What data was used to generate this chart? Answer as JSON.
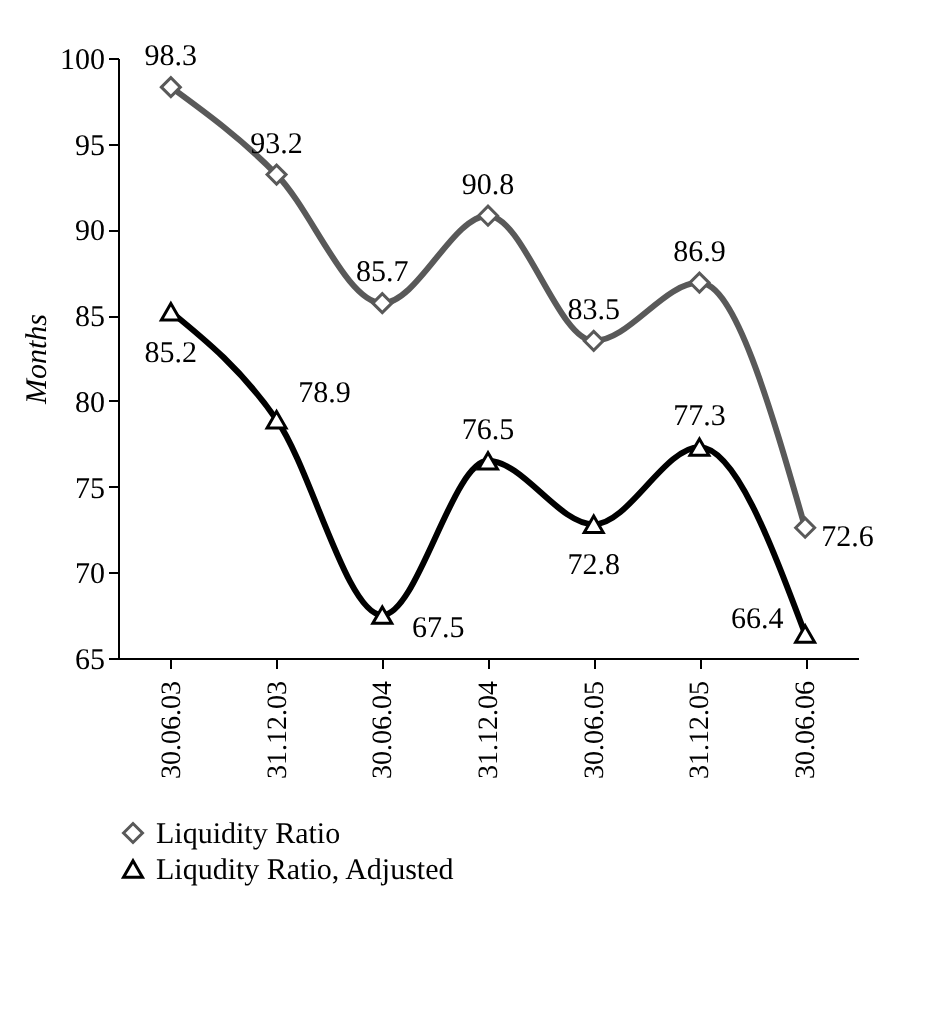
{
  "chart_data": {
    "type": "line",
    "ylabel": "Months",
    "categories": [
      "30.06.03",
      "31.12.03",
      "30.06.04",
      "31.12.04",
      "30.06.05",
      "31.12.05",
      "30.06.06"
    ],
    "series": [
      {
        "name": "Liquidity Ratio",
        "color": "#595959",
        "marker": "diamond",
        "values": [
          98.3,
          93.2,
          85.7,
          90.8,
          83.5,
          86.9,
          72.6
        ]
      },
      {
        "name": "Liqudity Ratio, Adjusted",
        "color": "#000000",
        "marker": "triangle",
        "values": [
          85.2,
          78.9,
          67.5,
          76.5,
          72.8,
          77.3,
          66.4
        ]
      }
    ],
    "ylim": [
      65,
      100
    ],
    "yticks": [
      65,
      70,
      75,
      80,
      85,
      90,
      95,
      100
    ],
    "grid": false,
    "legend": "bottom",
    "data_labels": true,
    "line_style": "solid"
  }
}
